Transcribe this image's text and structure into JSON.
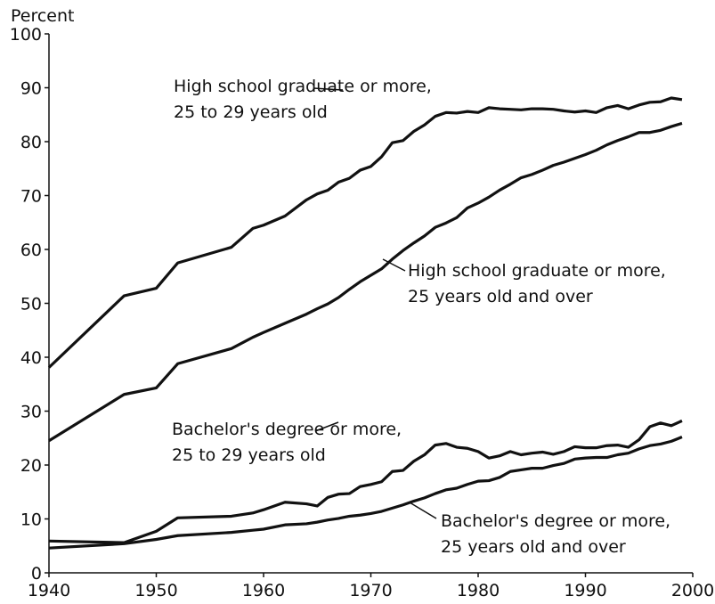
{
  "chart_data": {
    "type": "line",
    "y_label": "Percent",
    "x": [
      1940,
      1947,
      1950,
      1952,
      1957,
      1959,
      1960,
      1962,
      1964,
      1965,
      1966,
      1967,
      1968,
      1969,
      1970,
      1971,
      1972,
      1973,
      1974,
      1975,
      1976,
      1977,
      1978,
      1979,
      1980,
      1981,
      1982,
      1983,
      1984,
      1985,
      1986,
      1987,
      1988,
      1989,
      1990,
      1991,
      1992,
      1993,
      1994,
      1995,
      1996,
      1997,
      1998,
      1999
    ],
    "series": [
      {
        "name": [
          "High school graduate or more,",
          "25 to 29 years old"
        ],
        "color": "#111111",
        "values": [
          38.1,
          51.4,
          52.8,
          57.5,
          60.4,
          63.9,
          64.5,
          66.2,
          69.2,
          70.3,
          71.0,
          72.5,
          73.2,
          74.7,
          75.4,
          77.2,
          79.8,
          80.2,
          81.9,
          83.1,
          84.7,
          85.4,
          85.3,
          85.6,
          85.4,
          86.3,
          86.1,
          86.0,
          85.9,
          86.1,
          86.1,
          86.0,
          85.7,
          85.5,
          85.7,
          85.4,
          86.3,
          86.7,
          86.1,
          86.8,
          87.3,
          87.4,
          88.1,
          87.8
        ]
      },
      {
        "name": [
          "High school graduate or more,",
          "25 years old and over"
        ],
        "color": "#111111",
        "values": [
          24.5,
          33.1,
          34.3,
          38.8,
          41.6,
          43.7,
          44.6,
          46.3,
          48.0,
          49.0,
          49.9,
          51.1,
          52.6,
          54.0,
          55.2,
          56.4,
          58.2,
          59.8,
          61.2,
          62.5,
          64.1,
          64.9,
          65.9,
          67.7,
          68.6,
          69.7,
          71.0,
          72.1,
          73.3,
          73.9,
          74.7,
          75.6,
          76.2,
          76.9,
          77.6,
          78.4,
          79.4,
          80.2,
          80.9,
          81.7,
          81.7,
          82.1,
          82.8,
          83.4
        ]
      },
      {
        "name": [
          "Bachelor's degree or more,",
          "25 to 29 years old"
        ],
        "color": "#111111",
        "values": [
          5.9,
          5.6,
          7.7,
          10.2,
          10.5,
          11.1,
          11.7,
          13.1,
          12.8,
          12.4,
          14.0,
          14.6,
          14.7,
          16.0,
          16.4,
          16.9,
          18.8,
          19.0,
          20.7,
          21.9,
          23.7,
          24.0,
          23.3,
          23.1,
          22.5,
          21.3,
          21.7,
          22.5,
          21.9,
          22.2,
          22.4,
          22.0,
          22.5,
          23.4,
          23.2,
          23.2,
          23.6,
          23.7,
          23.3,
          24.7,
          27.1,
          27.8,
          27.3,
          28.2
        ]
      },
      {
        "name": [
          "Bachelor's degree or more,",
          "25 years old and over"
        ],
        "color": "#111111",
        "values": [
          4.6,
          5.4,
          6.2,
          6.9,
          7.5,
          7.9,
          8.1,
          8.9,
          9.1,
          9.4,
          9.8,
          10.1,
          10.5,
          10.7,
          11.0,
          11.4,
          12.0,
          12.6,
          13.3,
          13.9,
          14.7,
          15.4,
          15.7,
          16.4,
          17.0,
          17.1,
          17.7,
          18.8,
          19.1,
          19.4,
          19.4,
          19.9,
          20.3,
          21.1,
          21.3,
          21.4,
          21.4,
          21.9,
          22.2,
          23.0,
          23.6,
          23.9,
          24.4,
          25.2
        ]
      }
    ],
    "xlim": [
      1940,
      2000
    ],
    "xticks": [
      1940,
      1950,
      1960,
      1970,
      1980,
      1990,
      2000
    ],
    "ylim": [
      0,
      100
    ],
    "yticks": [
      0,
      10,
      20,
      30,
      40,
      50,
      60,
      70,
      80,
      90,
      100
    ],
    "grid": false
  }
}
